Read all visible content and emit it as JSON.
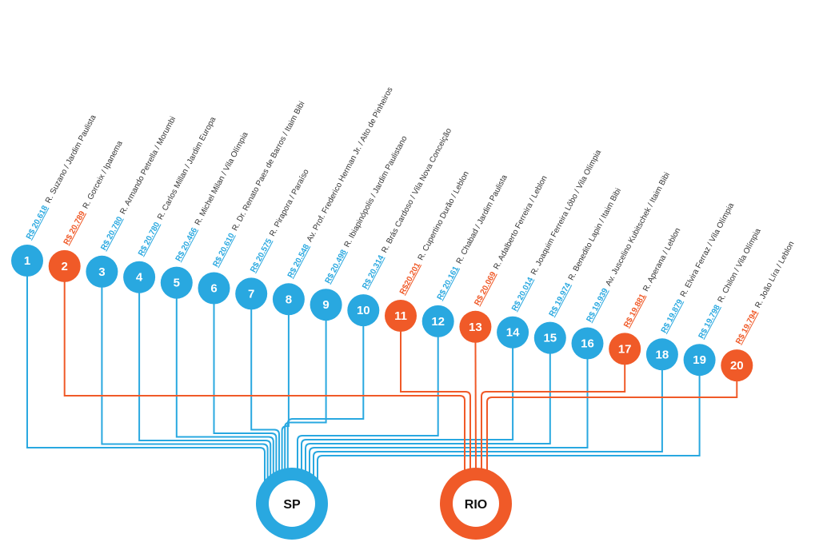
{
  "hubs": [
    {
      "label": "SP",
      "color": "#29a8e0"
    },
    {
      "label": "RIO",
      "color": "#f05a28"
    }
  ],
  "items": [
    {
      "number": 1,
      "price": "R$ 20.618",
      "street": "R. Suzano / Jardim Paulista",
      "hub": 0
    },
    {
      "number": 2,
      "price": "R$ 20.789",
      "street": "R. Gorceix / Ipanema",
      "hub": 1
    },
    {
      "number": 3,
      "price": "R$ 20.780",
      "street": "R. Armando Petrella / Morumbi",
      "hub": 0
    },
    {
      "number": 4,
      "price": "R$ 20.780",
      "street": "R. Carlos Millan / Jardim Europa",
      "hub": 0
    },
    {
      "number": 5,
      "price": "R$ 20.466",
      "street": "R. Michel Milan / Vila Olímpia",
      "hub": 0
    },
    {
      "number": 6,
      "price": "R$ 20.610",
      "street": "R. Dr. Renato Paes de Barros / Itaim Bibi",
      "hub": 0
    },
    {
      "number": 7,
      "price": "R$ 20.575",
      "street": "R. Pirapora / Paraíso",
      "hub": 0
    },
    {
      "number": 8,
      "price": "R$ 20.548",
      "street": "Av. Prof. Frederico Herman Jr. / Alto de Pinheiros",
      "hub": 0
    },
    {
      "number": 9,
      "price": "R$ 20.498",
      "street": "R. Ibiapinópolis / Jardim Paulistano",
      "hub": 0
    },
    {
      "number": 10,
      "price": "R$ 20.314",
      "street": "R. Brás Cardoso / Vila Nova Conceição",
      "hub": 0
    },
    {
      "number": 11,
      "price": "R$20.201",
      "street": "R. Cupertino Durão / Leblon",
      "hub": 1
    },
    {
      "number": 12,
      "price": "R$ 20.161",
      "street": "R. Chabad / Jardim Paulista",
      "hub": 0
    },
    {
      "number": 13,
      "price": "R$ 20.069",
      "street": "R. Adalberto Ferreira / Leblon",
      "hub": 1
    },
    {
      "number": 14,
      "price": "R$ 20.014",
      "street": "R. Joaquim Ferreira Lôbo / Vila Olímpia",
      "hub": 0
    },
    {
      "number": 15,
      "price": "R$ 19.974",
      "street": "R. Benedito Lapin / Itaim Bibi",
      "hub": 0
    },
    {
      "number": 16,
      "price": "R$ 19.939",
      "street": "Av. Juscelino Kubitschek / Itaim Bibi",
      "hub": 0
    },
    {
      "number": 17,
      "price": "R$ 19.881",
      "street": "R. Aperana / Leblon",
      "hub": 1
    },
    {
      "number": 18,
      "price": "R$ 19.879",
      "street": "R. Elvira Ferraz / Vila Olímpia",
      "hub": 0
    },
    {
      "number": 19,
      "price": "R$ 19.798",
      "street": "R. Chilon / Vila Olímpia",
      "hub": 0
    },
    {
      "number": 20,
      "price": "R$ 19.794",
      "street": "R. João Líra / Leblon",
      "hub": 1
    }
  ]
}
